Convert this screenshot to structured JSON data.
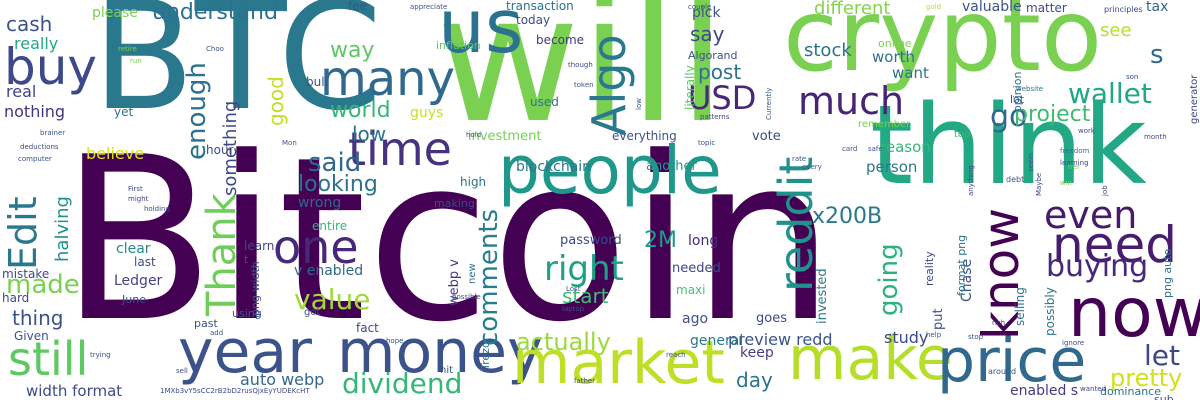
{
  "words": [
    {
      "text": "Bitcoin",
      "color": "#440154"
    },
    {
      "text": "will",
      "color": "#7ad151"
    },
    {
      "text": "BTC",
      "color": "#2a788e"
    },
    {
      "text": "crypto",
      "color": "#7ad151"
    },
    {
      "text": "think",
      "color": "#22a884"
    },
    {
      "text": "people",
      "color": "#1f988b"
    },
    {
      "text": "year",
      "color": "#3b528b"
    },
    {
      "text": "money",
      "color": "#3b528b"
    },
    {
      "text": "market",
      "color": "#bddf26"
    },
    {
      "text": "make",
      "color": "#b5de2b"
    },
    {
      "text": "price",
      "color": "#31688e"
    },
    {
      "text": "now",
      "color": "#440154"
    },
    {
      "text": "many",
      "color": "#31688e"
    },
    {
      "text": "us",
      "color": "#2c728e"
    },
    {
      "text": "buy",
      "color": "#3e4989"
    },
    {
      "text": "still",
      "color": "#5ec962"
    },
    {
      "text": "one",
      "color": "#482878"
    },
    {
      "text": "need",
      "color": "#481d6f"
    },
    {
      "text": "know",
      "color": "#440154"
    },
    {
      "text": "reddit",
      "color": "#21918c"
    },
    {
      "text": "time",
      "color": "#46327e"
    },
    {
      "text": "Thank",
      "color": "#6ece58"
    },
    {
      "text": "Edit",
      "color": "#2a788e"
    },
    {
      "text": "Algo",
      "color": "#2a788e"
    },
    {
      "text": "much",
      "color": "#482475"
    },
    {
      "text": "even",
      "color": "#481a6c"
    },
    {
      "text": "dividend",
      "color": "#35b779"
    },
    {
      "text": "value",
      "color": "#a0da39"
    },
    {
      "text": "comments",
      "color": "#277f8e"
    },
    {
      "text": "right",
      "color": "#1fa187"
    },
    {
      "text": "buying",
      "color": "#482878"
    },
    {
      "text": "USD",
      "color": "#482878"
    },
    {
      "text": "go",
      "color": "#31688e"
    },
    {
      "text": "wallet",
      "color": "#22a884"
    },
    {
      "text": "let",
      "color": "#3e4989"
    },
    {
      "text": "pretty",
      "color": "#d0e11c"
    },
    {
      "text": "going",
      "color": "#2db27d"
    },
    {
      "text": "made",
      "color": "#7ad151"
    },
    {
      "text": "enough",
      "color": "#2c728e"
    },
    {
      "text": "said",
      "color": "#31688e"
    },
    {
      "text": "actually",
      "color": "#9bd93c"
    },
    {
      "text": "looking",
      "color": "#2c728e"
    },
    {
      "text": "understand",
      "color": "#2c728e"
    },
    {
      "text": "s",
      "color": "#31688e"
    },
    {
      "text": "project",
      "color": "#3fbc73"
    },
    {
      "text": "post",
      "color": "#2c728e"
    },
    {
      "text": "say",
      "color": "#3e4989"
    },
    {
      "text": "x200B",
      "color": "#2a788e"
    },
    {
      "text": "2M",
      "color": "#1e9b8a"
    },
    {
      "text": "day",
      "color": "#2c728e"
    },
    {
      "text": "start",
      "color": "#3fbc73"
    },
    {
      "text": "world",
      "color": "#35b779"
    },
    {
      "text": "way",
      "color": "#5ec962"
    },
    {
      "text": "good",
      "color": "#c2df23"
    },
    {
      "text": "something",
      "color": "#3e4989"
    },
    {
      "text": "halving",
      "color": "#21918c"
    },
    {
      "text": "stock",
      "color": "#2c728e"
    },
    {
      "text": "different",
      "color": "#84d44b"
    },
    {
      "text": "thing",
      "color": "#3b528b"
    },
    {
      "text": "cash",
      "color": "#3b528b"
    },
    {
      "text": "see",
      "color": "#b5de2b"
    },
    {
      "text": "low",
      "color": "#2c728e"
    },
    {
      "text": "really",
      "color": "#22a884"
    },
    {
      "text": "nothing",
      "color": "#46337e"
    },
    {
      "text": "real",
      "color": "#414487"
    },
    {
      "text": "believe",
      "color": "#d8e219"
    },
    {
      "text": "Ledger",
      "color": "#414487"
    },
    {
      "text": "preview redd",
      "color": "#3b528b"
    },
    {
      "text": "auto webp",
      "color": "#31688e"
    },
    {
      "text": "width format",
      "color": "#3e4989"
    },
    {
      "text": "enabled s",
      "color": "#443a83"
    },
    {
      "text": "study",
      "color": "#3e4989"
    },
    {
      "text": "general",
      "color": "#2a788e"
    },
    {
      "text": "keep",
      "color": "#433e85"
    },
    {
      "text": "person",
      "color": "#2a788e"
    },
    {
      "text": "reason",
      "color": "#35b779"
    },
    {
      "text": "worth",
      "color": "#2c728e"
    },
    {
      "text": "want",
      "color": "#2c728e"
    },
    {
      "text": "pick",
      "color": "#3b528b"
    },
    {
      "text": "valuable",
      "color": "#3b528b"
    },
    {
      "text": "tax",
      "color": "#31688e"
    },
    {
      "text": "matter",
      "color": "#3e4989"
    },
    {
      "text": "fee",
      "color": "#3b528b"
    },
    {
      "text": "today",
      "color": "#3e4989"
    },
    {
      "text": "become",
      "color": "#453781"
    },
    {
      "text": "transaction",
      "color": "#2c728e"
    },
    {
      "text": "Algorand",
      "color": "#3b528b"
    },
    {
      "text": "please",
      "color": "#7ad151"
    },
    {
      "text": "inflation",
      "color": "#5ec962"
    },
    {
      "text": "used",
      "color": "#2c728e"
    },
    {
      "text": "guys",
      "color": "#c8e020"
    },
    {
      "text": "investment",
      "color": "#73d056"
    },
    {
      "text": "everything",
      "color": "#3b528b"
    },
    {
      "text": "blockchain",
      "color": "#2a788e"
    },
    {
      "text": "another",
      "color": "#1f988b"
    },
    {
      "text": "vote",
      "color": "#3e4989"
    },
    {
      "text": "high",
      "color": "#2c728e"
    },
    {
      "text": "learn",
      "color": "#3e4989"
    },
    {
      "text": "wrong",
      "color": "#31688e"
    },
    {
      "text": "entire",
      "color": "#35b779"
    },
    {
      "text": "clear",
      "color": "#23898e"
    },
    {
      "text": "hour",
      "color": "#3e4989"
    },
    {
      "text": "password",
      "color": "#3e4989"
    },
    {
      "text": "long",
      "color": "#482878"
    },
    {
      "text": "needed",
      "color": "#3e4989"
    },
    {
      "text": "webp v",
      "color": "#443983"
    },
    {
      "text": "v enabled",
      "color": "#31688e"
    },
    {
      "text": "maxi",
      "color": "#4ac16d"
    },
    {
      "text": "ago",
      "color": "#3b528b"
    },
    {
      "text": "goes",
      "color": "#3e4989"
    },
    {
      "text": "invested",
      "color": "#2a788e"
    },
    {
      "text": "put",
      "color": "#3b528b"
    },
    {
      "text": "Chase",
      "color": "#3b528b"
    },
    {
      "text": "selling",
      "color": "#2c728e"
    },
    {
      "text": "possibly",
      "color": "#2c728e"
    },
    {
      "text": "fact",
      "color": "#3e4989"
    },
    {
      "text": "Trezor",
      "color": "#2c728e"
    },
    {
      "text": "mistake",
      "color": "#3e4989"
    },
    {
      "text": "hard",
      "color": "#3e4989"
    },
    {
      "text": "Given",
      "color": "#3b528b"
    },
    {
      "text": "last",
      "color": "#3e4989"
    },
    {
      "text": "June",
      "color": "#3e4989"
    },
    {
      "text": "yet",
      "color": "#2c728e"
    },
    {
      "text": "bull",
      "color": "#3b528b"
    },
    {
      "text": "literally",
      "color": "#5ec962"
    },
    {
      "text": "format png",
      "color": "#2c728e"
    },
    {
      "text": "png auto",
      "color": "#2c728e"
    },
    {
      "text": "online",
      "color": "#7ad151"
    },
    {
      "text": "opinion",
      "color": "#2c728e"
    },
    {
      "text": "reality",
      "color": "#3e4989"
    },
    {
      "text": "lot",
      "color": "#3b528b"
    },
    {
      "text": "sub",
      "color": "#3b528b"
    },
    {
      "text": "png width",
      "color": "#3b528b"
    },
    {
      "text": "using",
      "color": "#3b528b"
    },
    {
      "text": "t",
      "color": "#3e4989"
    },
    {
      "text": "past",
      "color": "#3b528b"
    },
    {
      "text": "got",
      "color": "#3b528b"
    },
    {
      "text": "hit",
      "color": "#3b528b"
    },
    {
      "text": "new",
      "color": "#2c728e"
    },
    {
      "text": "top",
      "color": "#35b779"
    },
    {
      "text": "generator",
      "color": "#3e4989"
    },
    {
      "text": "principles",
      "color": "#3e4989"
    },
    {
      "text": "remember",
      "color": "#7ad151"
    },
    {
      "text": "website",
      "color": "#2c728e"
    },
    {
      "text": "debt",
      "color": "#3b528b"
    },
    {
      "text": "Maybe",
      "color": "#3e4989"
    },
    {
      "text": "freedom",
      "color": "#2c728e"
    },
    {
      "text": "learning",
      "color": "#3e4989"
    },
    {
      "text": "dominance",
      "color": "#2c728e"
    },
    {
      "text": "around",
      "color": "#3b528b"
    },
    {
      "text": "wanted",
      "color": "#3e4989"
    },
    {
      "text": "ignore",
      "color": "#3e4989"
    },
    {
      "text": "help",
      "color": "#3b528b"
    },
    {
      "text": "rich",
      "color": "#3e4989"
    },
    {
      "text": "sell",
      "color": "#3e4989"
    },
    {
      "text": "trying",
      "color": "#3e4989"
    },
    {
      "text": "reach",
      "color": "#3b528b"
    },
    {
      "text": "father",
      "color": "#3e4989"
    },
    {
      "text": "stop",
      "color": "#3b528b"
    },
    {
      "text": "hope",
      "color": "#3b528b"
    },
    {
      "text": "laptop",
      "color": "#3b528b"
    },
    {
      "text": "Lost",
      "color": "#3b528b"
    },
    {
      "text": "possible",
      "color": "#3e4989"
    },
    {
      "text": "making",
      "color": "#3e4989"
    },
    {
      "text": "First",
      "color": "#3e4989"
    },
    {
      "text": "might",
      "color": "#3e4989"
    },
    {
      "text": "holding",
      "color": "#3e4989"
    },
    {
      "text": "add",
      "color": "#3b528b"
    },
    {
      "text": "Mon",
      "color": "#3b528b"
    },
    {
      "text": "appreciate",
      "color": "#3b528b"
    },
    {
      "text": "couple",
      "color": "#3e4989"
    },
    {
      "text": "gold",
      "color": "#b5de2b"
    },
    {
      "text": "son",
      "color": "#3e4989"
    },
    {
      "text": "month",
      "color": "#3e4989"
    },
    {
      "text": "work",
      "color": "#3b528b"
    },
    {
      "text": "tier",
      "color": "#7ad151"
    },
    {
      "text": "job",
      "color": "#3e4989"
    },
    {
      "text": "win",
      "color": "#7ad151"
    },
    {
      "text": "seem",
      "color": "#3b528b"
    },
    {
      "text": "anything",
      "color": "#3e4989"
    },
    {
      "text": "safe",
      "color": "#3b528b"
    },
    {
      "text": "card",
      "color": "#3b528b"
    },
    {
      "text": "rate",
      "color": "#3b528b"
    },
    {
      "text": "every",
      "color": "#3b528b"
    },
    {
      "text": "Currently",
      "color": "#3b528b"
    },
    {
      "text": "patterns",
      "color": "#3e4989"
    },
    {
      "text": "topic",
      "color": "#3b528b"
    },
    {
      "text": "token",
      "color": "#3b528b"
    },
    {
      "text": "though",
      "color": "#3e4989"
    },
    {
      "text": "hold",
      "color": "#3b528b"
    },
    {
      "text": "low",
      "color": "#3b528b"
    },
    {
      "text": "brainer",
      "color": "#3b528b"
    },
    {
      "text": "deductions",
      "color": "#3e4989"
    },
    {
      "text": "computer",
      "color": "#3b528b"
    },
    {
      "text": "retire",
      "color": "#7ad151"
    },
    {
      "text": "run",
      "color": "#7ad151"
    },
    {
      "text": "Choo",
      "color": "#3b528b"
    },
    {
      "text": "1MXb3vY5sCC2rB2bD2rusQjxEyYUDEKcHT",
      "color": "#3e4989"
    }
  ]
}
